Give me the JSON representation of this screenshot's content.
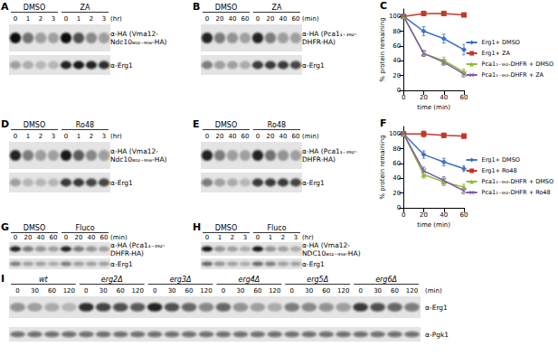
{
  "chart_data": [
    {
      "label": "C",
      "type": "line",
      "x": [
        0,
        20,
        40,
        60
      ],
      "xlim": [
        0,
        60
      ],
      "xticks": [
        0,
        20,
        40,
        60
      ],
      "ylim": [
        0,
        110
      ],
      "yticks": [
        0,
        20,
        40,
        60,
        80,
        100
      ],
      "xlabel": "time (min)",
      "ylabel": "% protein remaining",
      "legend": "right",
      "grid": false,
      "series": [
        {
          "name": "Erg1+ DMSO",
          "color": "#3d72c9",
          "marker": "diamond",
          "values": [
            100,
            80,
            70,
            55
          ],
          "errors": [
            0,
            6,
            6,
            7
          ]
        },
        {
          "name": "Erg1+ ZA",
          "color": "#c0392b",
          "marker": "square",
          "values": [
            100,
            104,
            104,
            102
          ],
          "errors": [
            0,
            3,
            2,
            2
          ]
        },
        {
          "name": "Pca1₁₋₃₉₂-DHFR + DMSO",
          "color": "#8fbc3a",
          "marker": "triangle",
          "values": [
            100,
            50,
            40,
            25
          ],
          "errors": [
            0,
            4,
            5,
            4
          ]
        },
        {
          "name": "Pca1₁₋₃₉₂-DHFR + ZA",
          "color": "#7e5ba8",
          "marker": "x",
          "values": [
            100,
            50,
            38,
            22
          ],
          "errors": [
            0,
            4,
            4,
            4
          ]
        }
      ]
    },
    {
      "label": "F",
      "type": "line",
      "x": [
        0,
        20,
        40,
        60
      ],
      "xlim": [
        0,
        60
      ],
      "xticks": [
        0,
        20,
        40,
        60
      ],
      "ylim": [
        0,
        110
      ],
      "yticks": [
        0,
        20,
        40,
        60,
        80,
        100
      ],
      "xlabel": "time (min)",
      "ylabel": "% protein remaining",
      "legend": "right",
      "grid": false,
      "series": [
        {
          "name": "Erg1+ DMSO",
          "color": "#3d72c9",
          "marker": "diamond",
          "values": [
            100,
            72,
            62,
            53
          ],
          "errors": [
            0,
            5,
            5,
            4
          ]
        },
        {
          "name": "Erg1+ Ro48",
          "color": "#c0392b",
          "marker": "square",
          "values": [
            100,
            100,
            98,
            97
          ],
          "errors": [
            0,
            4,
            3,
            3
          ]
        },
        {
          "name": "Pca1₁₋₃₉₂-DHFR + DMSO",
          "color": "#8fbc3a",
          "marker": "triangle",
          "values": [
            100,
            45,
            35,
            28
          ],
          "errors": [
            0,
            5,
            5,
            4
          ]
        },
        {
          "name": "Pca1₁₋₃₉₂-DHFR + Ro48",
          "color": "#7e5ba8",
          "marker": "x",
          "values": [
            100,
            50,
            37,
            23
          ],
          "errors": [
            0,
            5,
            5,
            4
          ]
        }
      ]
    }
  ],
  "blots": [
    {
      "label": "A",
      "unit": "(hr)",
      "italic": false,
      "groups": [
        {
          "name": "DMSO",
          "lanes": [
            0,
            1,
            2,
            3
          ]
        },
        {
          "name": "ZA",
          "lanes": [
            0,
            1,
            2,
            3
          ]
        }
      ],
      "rows": [
        {
          "antibody": [
            "α-HA (Vma12-",
            "Ndc10₈₀₂₋₉₅₆-HA)"
          ],
          "bands": [
            [
              1,
              0.55,
              0.35,
              0.3
            ],
            [
              1,
              0.7,
              0.45,
              0.35
            ]
          ]
        },
        {
          "antibody": [
            "α-Erg1"
          ],
          "bands": [
            [
              0.3,
              0.25,
              0.2,
              0.2
            ],
            [
              0.9,
              0.95,
              0.9,
              0.85
            ]
          ]
        }
      ]
    },
    {
      "label": "B",
      "unit": "(min)",
      "italic": false,
      "groups": [
        {
          "name": "DMSO",
          "lanes": [
            0,
            20,
            40,
            60
          ]
        },
        {
          "name": "ZA",
          "lanes": [
            0,
            20,
            40,
            60
          ]
        }
      ],
      "rows": [
        {
          "antibody": [
            "α-HA (Pca1₁₋₃₉₂-",
            "DHFR-HA)"
          ],
          "bands": [
            [
              0.9,
              0.5,
              0.4,
              0.3
            ],
            [
              0.9,
              0.5,
              0.35,
              0.3
            ]
          ]
        },
        {
          "antibody": [
            "α-Erg1"
          ],
          "bands": [
            [
              0.5,
              0.35,
              0.3,
              0.25
            ],
            [
              0.8,
              0.8,
              0.8,
              0.75
            ]
          ]
        }
      ]
    },
    {
      "label": "D",
      "unit": "(hr)",
      "italic": false,
      "groups": [
        {
          "name": "DMSO",
          "lanes": [
            0,
            1,
            2,
            3
          ]
        },
        {
          "name": "Ro48",
          "lanes": [
            0,
            1,
            2,
            3
          ]
        }
      ],
      "rows": [
        {
          "antibody": [
            "α-HA (Vma12-",
            "Ndc10₈₀₂₋₉₅₆-HA)"
          ],
          "bands": [
            [
              0.9,
              0.5,
              0.35,
              0.3
            ],
            [
              0.95,
              0.65,
              0.45,
              0.35
            ]
          ]
        },
        {
          "antibody": [
            "α-Erg1"
          ],
          "bands": [
            [
              0.3,
              0.2,
              0.2,
              0.2
            ],
            [
              0.8,
              0.8,
              0.75,
              0.75
            ]
          ]
        }
      ]
    },
    {
      "label": "E",
      "unit": "(min)",
      "italic": false,
      "groups": [
        {
          "name": "DMSO",
          "lanes": [
            0,
            20,
            40,
            60
          ]
        },
        {
          "name": "Ro48",
          "lanes": [
            0,
            20,
            40,
            60
          ]
        }
      ],
      "rows": [
        {
          "antibody": [
            "α-HA (Pca1₁₋₃₉₂-",
            "DHFR-HA)"
          ],
          "bands": [
            [
              0.9,
              0.5,
              0.35,
              0.3
            ],
            [
              0.9,
              0.55,
              0.4,
              0.3
            ]
          ]
        },
        {
          "antibody": [
            "α-Erg1"
          ],
          "bands": [
            [
              0.5,
              0.3,
              0.25,
              0.2
            ],
            [
              0.8,
              0.8,
              0.8,
              0.75
            ]
          ]
        }
      ]
    },
    {
      "label": "G",
      "unit": "(min)",
      "italic": false,
      "groups": [
        {
          "name": "DMSO",
          "lanes": [
            0,
            20,
            40,
            60
          ]
        },
        {
          "name": "Fluco",
          "lanes": [
            0,
            20,
            40,
            60
          ]
        }
      ],
      "rows": [
        {
          "antibody": [
            "α-HA (Pca1₁₋₃₉₂-",
            "DHFR-HA)"
          ],
          "bands": [
            [
              0.9,
              0.5,
              0.4,
              0.3
            ],
            [
              0.9,
              0.5,
              0.4,
              0.3
            ]
          ]
        },
        {
          "antibody": [
            "α-Erg1"
          ],
          "bands": [
            [
              0.5,
              0.3,
              0.3,
              0.25
            ],
            [
              0.5,
              0.35,
              0.3,
              0.3
            ]
          ]
        }
      ]
    },
    {
      "label": "H",
      "unit": "(hr)",
      "italic": false,
      "groups": [
        {
          "name": "DMSO",
          "lanes": [
            0,
            1,
            2,
            3
          ]
        },
        {
          "name": "Fluco",
          "lanes": [
            0,
            1,
            2,
            3
          ]
        }
      ],
      "rows": [
        {
          "antibody": [
            "α-HA (Vma12-",
            "NDC10₈₀₂₋₉₅₆-HA)"
          ],
          "bands": [
            [
              0.95,
              0.4,
              0.3,
              0.25
            ],
            [
              0.95,
              0.4,
              0.3,
              0.25
            ]
          ]
        },
        {
          "antibody": [
            "α-Erg1"
          ],
          "bands": [
            [
              0.6,
              0.4,
              0.3,
              0.25
            ],
            [
              0.6,
              0.5,
              0.35,
              0.3
            ]
          ]
        }
      ]
    },
    {
      "label": "I",
      "unit": "(min)",
      "italic": true,
      "groups": [
        {
          "name": "wt",
          "lanes": [
            0,
            30,
            60,
            120
          ]
        },
        {
          "name": "erg2Δ",
          "lanes": [
            0,
            30,
            60,
            120
          ]
        },
        {
          "name": "erg3Δ",
          "lanes": [
            0,
            30,
            60,
            120
          ]
        },
        {
          "name": "erg4Δ",
          "lanes": [
            0,
            30,
            60,
            120
          ]
        },
        {
          "name": "erg5Δ",
          "lanes": [
            0,
            30,
            60,
            120
          ]
        },
        {
          "name": "erg6Δ",
          "lanes": [
            0,
            30,
            60,
            120
          ]
        }
      ],
      "rows": [
        {
          "antibody": [
            "α-Erg1"
          ],
          "bands": [
            [
              0.4,
              0.3,
              0.25,
              0.2
            ],
            [
              0.85,
              0.75,
              0.7,
              0.65
            ],
            [
              0.9,
              0.7,
              0.6,
              0.45
            ],
            [
              0.6,
              0.4,
              0.3,
              0.25
            ],
            [
              0.5,
              0.45,
              0.4,
              0.35
            ],
            [
              0.8,
              0.7,
              0.6,
              0.5
            ]
          ]
        },
        {
          "antibody": [
            "α-Pgk1"
          ],
          "bands": [
            [
              0.55,
              0.55,
              0.55,
              0.55
            ],
            [
              0.55,
              0.55,
              0.55,
              0.55
            ],
            [
              0.55,
              0.55,
              0.55,
              0.55
            ],
            [
              0.55,
              0.55,
              0.55,
              0.55
            ],
            [
              0.55,
              0.55,
              0.55,
              0.55
            ],
            [
              0.55,
              0.55,
              0.55,
              0.55
            ]
          ]
        }
      ]
    }
  ]
}
